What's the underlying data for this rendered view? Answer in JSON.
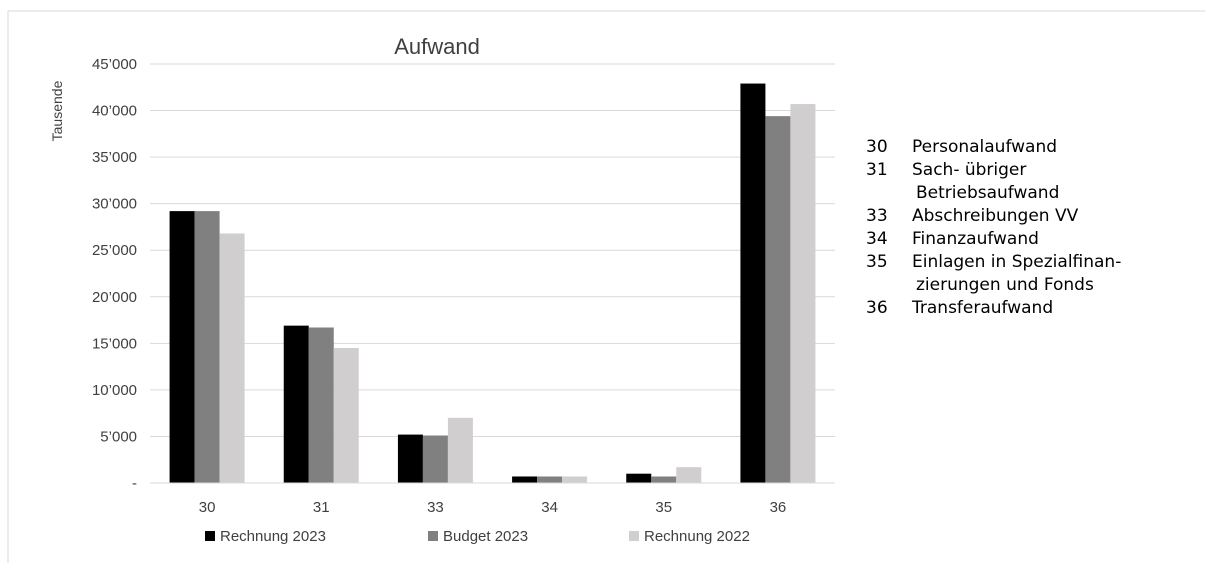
{
  "chart_data": {
    "type": "bar",
    "title": "Aufwand",
    "ylabel": "Tausende",
    "xlabel": "",
    "categories": [
      "30",
      "31",
      "33",
      "34",
      "35",
      "36"
    ],
    "ylim": [
      0,
      45000
    ],
    "yticks": [
      {
        "value": 0,
        "label": "-"
      },
      {
        "value": 5000,
        "label": "5’000"
      },
      {
        "value": 10000,
        "label": "10’000"
      },
      {
        "value": 15000,
        "label": "15’000"
      },
      {
        "value": 20000,
        "label": "20’000"
      },
      {
        "value": 25000,
        "label": "25’000"
      },
      {
        "value": 30000,
        "label": "30’000"
      },
      {
        "value": 35000,
        "label": "35’000"
      },
      {
        "value": 40000,
        "label": "40’000"
      },
      {
        "value": 45000,
        "label": "45’000"
      }
    ],
    "series": [
      {
        "name": "Rechnung 2023",
        "color": "#000000",
        "values": [
          29200,
          16900,
          5200,
          700,
          1000,
          42900
        ]
      },
      {
        "name": "Budget 2023",
        "color": "#808080",
        "values": [
          29200,
          16700,
          5100,
          700,
          700,
          39400
        ]
      },
      {
        "name": "Rechnung 2022",
        "color": "#d0cece",
        "values": [
          26800,
          14500,
          7000,
          700,
          1700,
          40700
        ]
      }
    ],
    "grid": true,
    "legend_position": "bottom"
  },
  "side_legend": [
    {
      "code": "30",
      "lines": [
        "Personalaufwand"
      ]
    },
    {
      "code": "31",
      "lines": [
        "Sach- übriger",
        "Betriebsaufwand"
      ]
    },
    {
      "code": "33",
      "lines": [
        "Abschreibungen VV"
      ]
    },
    {
      "code": "34",
      "lines": [
        "Finanzaufwand"
      ]
    },
    {
      "code": "35",
      "lines": [
        "Einlagen in Spezialfinan-",
        "zierungen und Fonds"
      ]
    },
    {
      "code": "36",
      "lines": [
        "Transferaufwand"
      ]
    }
  ]
}
